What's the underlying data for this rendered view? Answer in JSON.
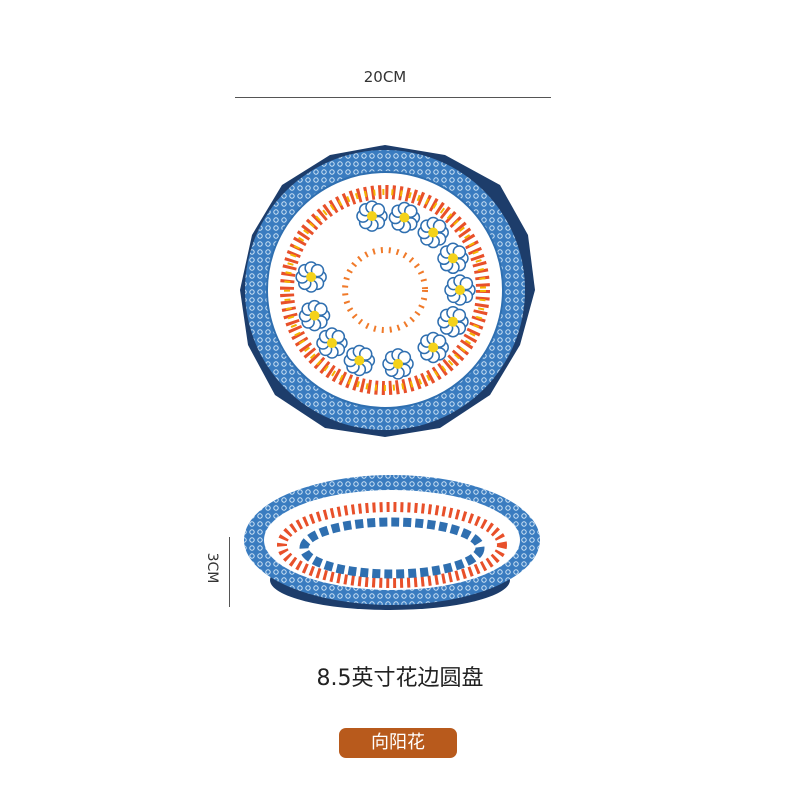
{
  "dimensions": {
    "width_label": "20CM",
    "height_label": "3CM"
  },
  "product": {
    "title": "8.5英寸花边圆盘",
    "variant_badge": "向阳花"
  },
  "colors": {
    "badge": "#b85a1c",
    "rim_blue": "#2f6fb0",
    "dark_blue": "#1d3d6b"
  }
}
